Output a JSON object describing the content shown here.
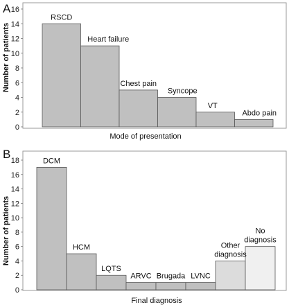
{
  "chart_data": [
    {
      "panel": "A",
      "type": "bar",
      "categories": [
        "RSCD",
        "Heart failure",
        "Chest pain",
        "Syncope",
        "VT",
        "Abdo pain"
      ],
      "values": [
        14,
        11,
        5,
        4,
        2,
        1
      ],
      "bar_colors": [
        "#c0c0c0",
        "#c0c0c0",
        "#c0c0c0",
        "#c0c0c0",
        "#c0c0c0",
        "#c0c0c0"
      ],
      "xlabel": "Mode of presentation",
      "ylabel": "Number of patients",
      "ylim": [
        0,
        16
      ],
      "yticks": [
        0,
        2,
        4,
        6,
        8,
        10,
        12,
        14,
        16
      ],
      "grid": false
    },
    {
      "panel": "B",
      "type": "bar",
      "categories": [
        "DCM",
        "HCM",
        "LQTS",
        "ARVC",
        "Brugada",
        "LVNC",
        "Other diagnosis",
        "No diagnosis"
      ],
      "values": [
        17,
        5,
        2,
        1,
        1,
        1,
        4,
        6
      ],
      "bar_colors": [
        "#c0c0c0",
        "#c0c0c0",
        "#c0c0c0",
        "#c0c0c0",
        "#c0c0c0",
        "#c0c0c0",
        "#dcdcdc",
        "#f0f0f0"
      ],
      "xlabel": "Final diagnosis",
      "ylabel": "Number of patients",
      "ylim": [
        0,
        18
      ],
      "yticks": [
        0,
        2,
        4,
        6,
        8,
        10,
        12,
        14,
        16,
        18
      ],
      "grid": false
    }
  ]
}
